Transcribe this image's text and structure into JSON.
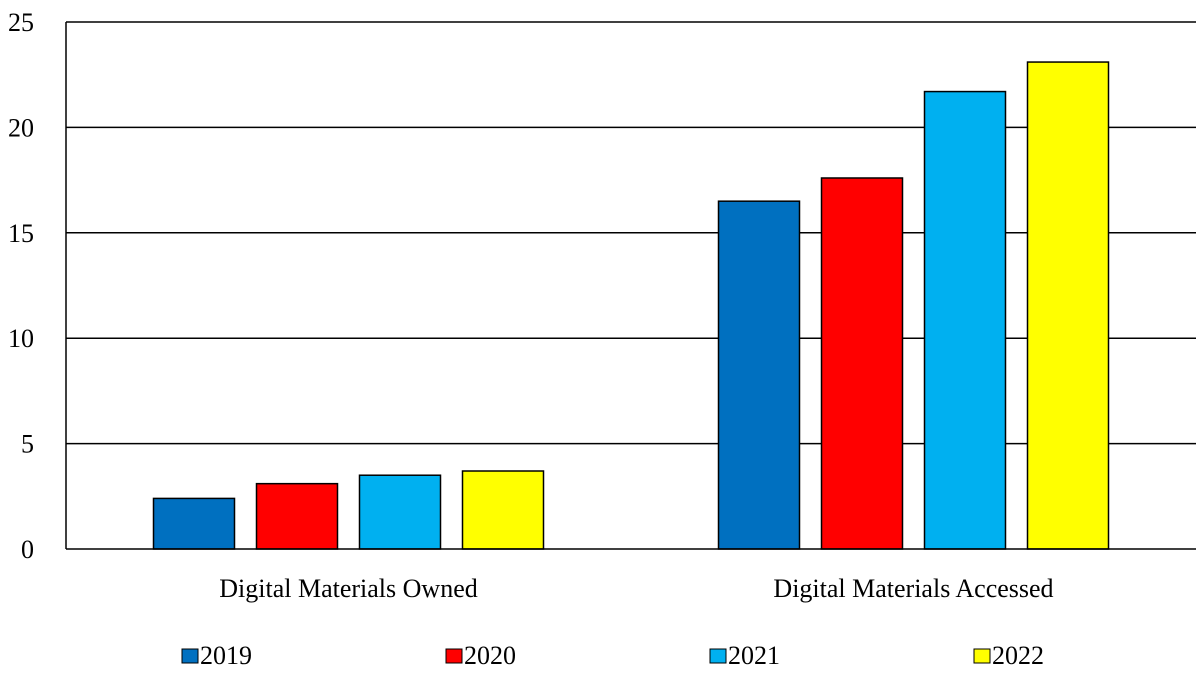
{
  "chart_data": {
    "type": "bar",
    "title": "",
    "xlabel": "",
    "ylabel": "",
    "categories": [
      "Digital Materials Owned",
      "Digital Materials Accessed"
    ],
    "series": [
      {
        "name": "2019",
        "color": "#0070C0",
        "values": [
          2.4,
          16.5
        ]
      },
      {
        "name": "2020",
        "color": "#FF0000",
        "values": [
          3.1,
          17.6
        ]
      },
      {
        "name": "2021",
        "color": "#00B0F0",
        "values": [
          3.5,
          21.7
        ]
      },
      {
        "name": "2022",
        "color": "#FFFF00",
        "values": [
          3.7,
          23.1
        ]
      }
    ],
    "ylim": [
      0,
      25
    ],
    "yticks": [
      0,
      5,
      10,
      15,
      20,
      25
    ],
    "grid": true,
    "legend_position": "bottom"
  }
}
